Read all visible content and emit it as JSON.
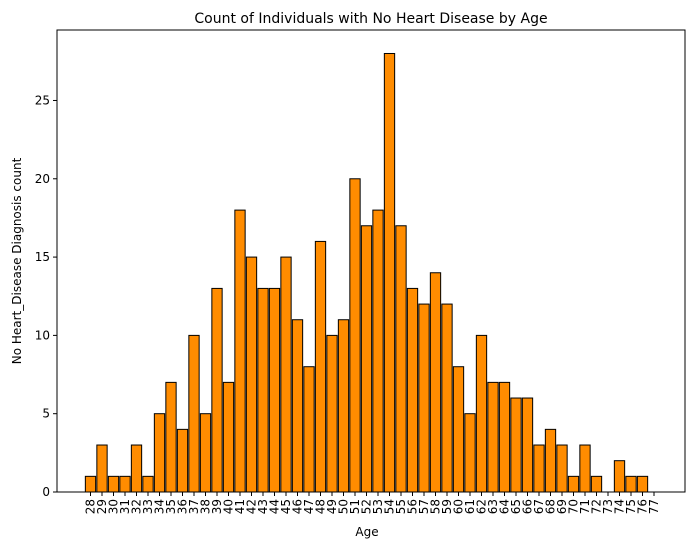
{
  "chart_data": {
    "type": "bar",
    "title": "Count of Individuals with No Heart Disease by Age",
    "xlabel": "Age",
    "ylabel": "No Heart_Disease Diagnosis count",
    "ylim": [
      0,
      29.5
    ],
    "yticks": [
      0,
      5,
      10,
      15,
      20,
      25
    ],
    "bar_color": "#ff8c00",
    "edge_color": "#000000",
    "x_tick_rotation": "vertical",
    "grid": false,
    "legend": "none",
    "categories": [
      "28",
      "29",
      "30",
      "31",
      "32",
      "33",
      "34",
      "35",
      "36",
      "37",
      "38",
      "39",
      "40",
      "41",
      "42",
      "43",
      "44",
      "45",
      "46",
      "47",
      "48",
      "49",
      "50",
      "51",
      "52",
      "53",
      "54",
      "55",
      "56",
      "57",
      "58",
      "59",
      "60",
      "61",
      "62",
      "63",
      "64",
      "65",
      "66",
      "67",
      "68",
      "69",
      "70",
      "71",
      "72",
      "73",
      "74",
      "75",
      "76",
      "77"
    ],
    "values": [
      1,
      3,
      1,
      1,
      3,
      1,
      5,
      7,
      4,
      10,
      5,
      13,
      7,
      18,
      15,
      13,
      13,
      15,
      11,
      8,
      16,
      10,
      11,
      20,
      17,
      18,
      28,
      17,
      13,
      12,
      14,
      12,
      8,
      5,
      10,
      7,
      7,
      6,
      6,
      3,
      4,
      3,
      1,
      3,
      1,
      0,
      2,
      1,
      1,
      0
    ]
  }
}
